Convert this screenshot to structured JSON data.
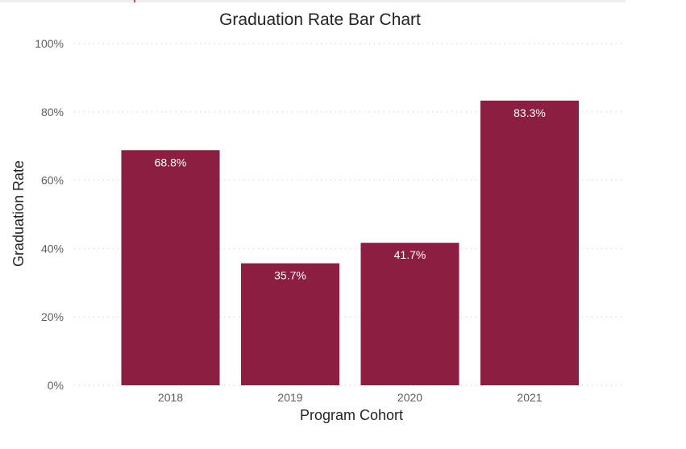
{
  "chart_data": {
    "type": "bar",
    "title": "Graduation Rate Bar Chart",
    "xlabel": "Program Cohort",
    "ylabel": "Graduation Rate",
    "categories": [
      "2018",
      "2019",
      "2020",
      "2021"
    ],
    "values": [
      68.8,
      35.7,
      41.7,
      83.3
    ],
    "data_labels": [
      "68.8%",
      "35.7%",
      "41.7%",
      "83.3%"
    ],
    "ylim": [
      0,
      100
    ],
    "yticks": [
      0,
      20,
      40,
      60,
      80,
      100
    ],
    "ytick_labels": [
      "0%",
      "20%",
      "40%",
      "60%",
      "80%",
      "100%"
    ],
    "grid": true,
    "bar_color": "#8b1e41"
  }
}
